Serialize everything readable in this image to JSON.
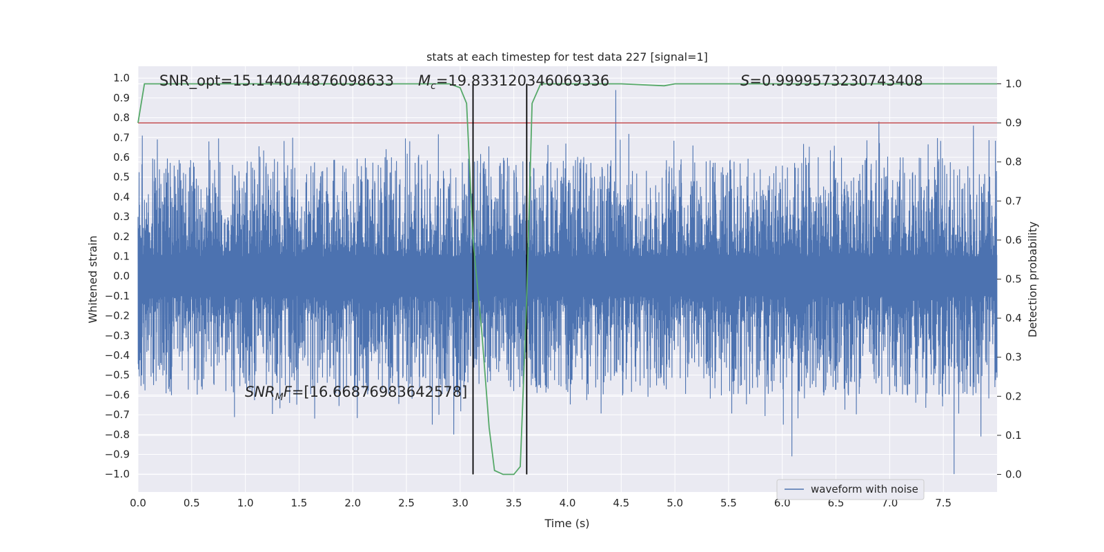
{
  "chart_data": {
    "type": "line",
    "title": "stats at each timestep for test data 227 [signal=1]",
    "xlabel": "Time (s)",
    "ylabel_left": "Whitened strain",
    "ylabel_right": "Detection probability",
    "xlim": [
      0.0,
      8.0
    ],
    "ylim_left": [
      -1.09,
      1.06
    ],
    "ylim_right": [
      -0.045,
      1.045
    ],
    "x_ticks": [
      "0.0",
      "0.5",
      "1.0",
      "1.5",
      "2.0",
      "2.5",
      "3.0",
      "3.5",
      "4.0",
      "4.5",
      "5.0",
      "5.5",
      "6.0",
      "6.5",
      "7.0",
      "7.5"
    ],
    "y_ticks_left": [
      "1.0",
      "0.9",
      "0.8",
      "0.7",
      "0.6",
      "0.5",
      "0.4",
      "0.3",
      "0.2",
      "0.1",
      "0.0",
      "-0.1",
      "-0.2",
      "-0.3",
      "-0.4",
      "-0.5",
      "-0.6",
      "-0.7",
      "-0.8",
      "-0.9",
      "-1.0"
    ],
    "y_ticks_right": [
      "1.0",
      "0.9",
      "0.8",
      "0.7",
      "0.6",
      "0.5",
      "0.4",
      "0.3",
      "0.2",
      "0.1",
      "0.0"
    ],
    "grid": true,
    "legend": {
      "position": "lower-right",
      "entries": [
        "waveform with noise"
      ]
    },
    "annotations": {
      "snr_opt": "SNR_opt=15.144044876098633",
      "mc_symbol": "M",
      "mc_sub": "c",
      "mc_value": "=19.833120346069336",
      "s_symbol": "S",
      "s_value": "=0.9999573230743408",
      "snrmf_symbol": "SNR",
      "snrmf_sub": "M",
      "snrmf_sym2": "F",
      "snrmf_value": "=[16.66876983642578]"
    },
    "series": [
      {
        "name": "waveform with noise",
        "axis": "left",
        "color": "#4c72b0",
        "description_values": {
          "typical_envelope": [
            -0.45,
            0.5
          ],
          "min": -1.0,
          "max": 0.95,
          "duration_s": 8.0
        },
        "spikes": [
          {
            "x": 0.04,
            "y": 0.71
          },
          {
            "x": 0.18,
            "y": 0.69
          },
          {
            "x": 0.66,
            "y": 0.68
          },
          {
            "x": 4.45,
            "y": 0.94
          },
          {
            "x": 6.9,
            "y": 0.78
          },
          {
            "x": 7.78,
            "y": 0.76
          },
          {
            "x": 7.6,
            "y": -1.0
          },
          {
            "x": 6.09,
            "y": -0.91
          },
          {
            "x": 2.94,
            "y": -0.8
          },
          {
            "x": 7.85,
            "y": -0.81
          },
          {
            "x": 2.74,
            "y": -0.75
          },
          {
            "x": 6.01,
            "y": -0.75
          }
        ]
      },
      {
        "name": "detection probability",
        "axis": "right",
        "color": "#55a868",
        "x": [
          0.0,
          0.06,
          0.5,
          1.0,
          2.0,
          2.9,
          3.0,
          3.06,
          3.12,
          3.2,
          3.27,
          3.32,
          3.4,
          3.5,
          3.56,
          3.62,
          3.67,
          3.75,
          4.0,
          4.5,
          4.9,
          5.0,
          6.0,
          7.0,
          8.0
        ],
        "values": [
          0.9,
          1.0,
          1.0,
          1.0,
          1.0,
          1.0,
          0.99,
          0.95,
          0.6,
          0.37,
          0.12,
          0.01,
          0.0,
          0.0,
          0.02,
          0.45,
          0.95,
          1.0,
          1.0,
          1.0,
          0.995,
          1.0,
          1.0,
          1.0,
          1.0
        ]
      }
    ],
    "threshold": {
      "axis": "right",
      "value": 0.9,
      "color": "#c44e52"
    },
    "vlines": {
      "x": [
        3.12,
        3.62
      ],
      "color": "#000000"
    }
  }
}
